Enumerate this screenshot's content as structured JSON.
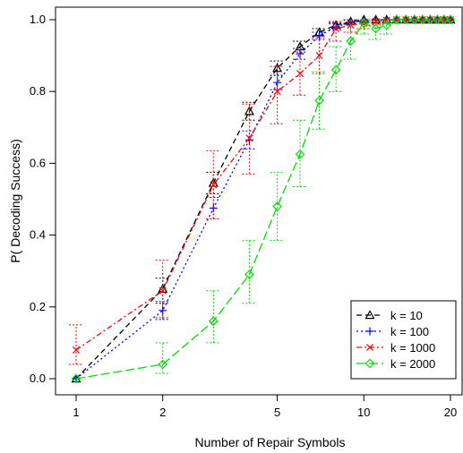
{
  "chart_data": {
    "type": "line",
    "xlabel": "Number of Repair Symbols",
    "ylabel": "P( Decoding Success)",
    "x_scale": "log",
    "xlim": [
      1,
      20
    ],
    "ylim": [
      0,
      1
    ],
    "x_ticks": [
      1,
      2,
      5,
      10,
      20
    ],
    "y_ticks": [
      0.0,
      0.2,
      0.4,
      0.6,
      0.8,
      1.0
    ],
    "x_tick_labels": [
      "1",
      "2",
      "5",
      "10",
      "20"
    ],
    "y_tick_labels": [
      "0.0",
      "0.2",
      "0.4",
      "0.6",
      "0.8",
      "1.0"
    ],
    "grid": false,
    "legend_position": "bottom-right",
    "series": [
      {
        "name": "k = 10",
        "color": "#000000",
        "marker": "triangle",
        "dash": "6,4",
        "points": [
          {
            "x": 1,
            "y": 0.0,
            "lo": 0.0,
            "hi": 0.0
          },
          {
            "x": 2,
            "y": 0.25,
            "lo": 0.21,
            "hi": 0.28
          },
          {
            "x": 3,
            "y": 0.545,
            "lo": 0.515,
            "hi": 0.575
          },
          {
            "x": 4,
            "y": 0.745,
            "lo": 0.72,
            "hi": 0.77
          },
          {
            "x": 5,
            "y": 0.865,
            "lo": 0.845,
            "hi": 0.885
          },
          {
            "x": 6,
            "y": 0.925,
            "lo": 0.91,
            "hi": 0.94
          },
          {
            "x": 7,
            "y": 0.965,
            "lo": 0.955,
            "hi": 0.975
          },
          {
            "x": 8,
            "y": 0.985,
            "lo": 0.978,
            "hi": 0.992
          },
          {
            "x": 9,
            "y": 0.995,
            "lo": 0.99,
            "hi": 1.0
          },
          {
            "x": 10,
            "y": 1.0,
            "lo": 1.0,
            "hi": 1.0
          },
          {
            "x": 11,
            "y": 1.0,
            "lo": 1.0,
            "hi": 1.0
          },
          {
            "x": 12,
            "y": 1.0,
            "lo": 1.0,
            "hi": 1.0
          },
          {
            "x": 13,
            "y": 1.0,
            "lo": 1.0,
            "hi": 1.0
          },
          {
            "x": 14,
            "y": 1.0,
            "lo": 1.0,
            "hi": 1.0
          },
          {
            "x": 15,
            "y": 1.0,
            "lo": 1.0,
            "hi": 1.0
          },
          {
            "x": 16,
            "y": 1.0,
            "lo": 1.0,
            "hi": 1.0
          },
          {
            "x": 17,
            "y": 1.0,
            "lo": 1.0,
            "hi": 1.0
          },
          {
            "x": 18,
            "y": 1.0,
            "lo": 1.0,
            "hi": 1.0
          },
          {
            "x": 19,
            "y": 1.0,
            "lo": 1.0,
            "hi": 1.0
          },
          {
            "x": 20,
            "y": 1.0,
            "lo": 1.0,
            "hi": 1.0
          }
        ]
      },
      {
        "name": "k = 100",
        "color": "#0000ff",
        "marker": "plus",
        "dash": "2,3",
        "points": [
          {
            "x": 1,
            "y": 0.0,
            "lo": 0.0,
            "hi": 0.0
          },
          {
            "x": 2,
            "y": 0.19,
            "lo": 0.165,
            "hi": 0.215
          },
          {
            "x": 3,
            "y": 0.475,
            "lo": 0.445,
            "hi": 0.505
          },
          {
            "x": 4,
            "y": 0.665,
            "lo": 0.64,
            "hi": 0.69
          },
          {
            "x": 5,
            "y": 0.825,
            "lo": 0.805,
            "hi": 0.845
          },
          {
            "x": 6,
            "y": 0.905,
            "lo": 0.89,
            "hi": 0.92
          },
          {
            "x": 7,
            "y": 0.955,
            "lo": 0.945,
            "hi": 0.965
          },
          {
            "x": 8,
            "y": 0.98,
            "lo": 0.972,
            "hi": 0.988
          },
          {
            "x": 9,
            "y": 0.993,
            "lo": 0.988,
            "hi": 0.998
          },
          {
            "x": 10,
            "y": 0.997,
            "lo": 0.994,
            "hi": 1.0
          },
          {
            "x": 11,
            "y": 1.0,
            "lo": 1.0,
            "hi": 1.0
          },
          {
            "x": 12,
            "y": 1.0,
            "lo": 1.0,
            "hi": 1.0
          },
          {
            "x": 13,
            "y": 1.0,
            "lo": 1.0,
            "hi": 1.0
          },
          {
            "x": 14,
            "y": 1.0,
            "lo": 1.0,
            "hi": 1.0
          },
          {
            "x": 15,
            "y": 1.0,
            "lo": 1.0,
            "hi": 1.0
          },
          {
            "x": 16,
            "y": 1.0,
            "lo": 1.0,
            "hi": 1.0
          },
          {
            "x": 17,
            "y": 1.0,
            "lo": 1.0,
            "hi": 1.0
          },
          {
            "x": 18,
            "y": 1.0,
            "lo": 1.0,
            "hi": 1.0
          },
          {
            "x": 19,
            "y": 1.0,
            "lo": 1.0,
            "hi": 1.0
          },
          {
            "x": 20,
            "y": 1.0,
            "lo": 1.0,
            "hi": 1.0
          }
        ]
      },
      {
        "name": "k = 1000",
        "color": "#ff0000",
        "marker": "cross",
        "dash": "6,3,2,3",
        "points": [
          {
            "x": 1,
            "y": 0.08,
            "lo": 0.04,
            "hi": 0.15
          },
          {
            "x": 2,
            "y": 0.245,
            "lo": 0.17,
            "hi": 0.33
          },
          {
            "x": 3,
            "y": 0.54,
            "lo": 0.445,
            "hi": 0.635
          },
          {
            "x": 4,
            "y": 0.67,
            "lo": 0.57,
            "hi": 0.765
          },
          {
            "x": 5,
            "y": 0.8,
            "lo": 0.71,
            "hi": 0.87
          },
          {
            "x": 6,
            "y": 0.85,
            "lo": 0.79,
            "hi": 0.91
          },
          {
            "x": 7,
            "y": 0.9,
            "lo": 0.85,
            "hi": 0.95
          },
          {
            "x": 8,
            "y": 0.975,
            "lo": 0.94,
            "hi": 0.995
          },
          {
            "x": 9,
            "y": 0.985,
            "lo": 0.965,
            "hi": 1.0
          },
          {
            "x": 10,
            "y": 0.99,
            "lo": 0.975,
            "hi": 1.0
          },
          {
            "x": 11,
            "y": 0.995,
            "lo": 0.985,
            "hi": 1.0
          },
          {
            "x": 12,
            "y": 0.998,
            "lo": 0.99,
            "hi": 1.0
          },
          {
            "x": 13,
            "y": 1.0,
            "lo": 1.0,
            "hi": 1.0
          },
          {
            "x": 14,
            "y": 1.0,
            "lo": 1.0,
            "hi": 1.0
          },
          {
            "x": 15,
            "y": 1.0,
            "lo": 1.0,
            "hi": 1.0
          },
          {
            "x": 16,
            "y": 1.0,
            "lo": 1.0,
            "hi": 1.0
          },
          {
            "x": 17,
            "y": 1.0,
            "lo": 1.0,
            "hi": 1.0
          },
          {
            "x": 18,
            "y": 1.0,
            "lo": 1.0,
            "hi": 1.0
          },
          {
            "x": 19,
            "y": 1.0,
            "lo": 1.0,
            "hi": 1.0
          },
          {
            "x": 20,
            "y": 1.0,
            "lo": 1.0,
            "hi": 1.0
          }
        ]
      },
      {
        "name": "k = 2000",
        "color": "#00dd00",
        "marker": "diamond",
        "dash": "10,4",
        "points": [
          {
            "x": 1,
            "y": 0.0,
            "lo": 0.0,
            "hi": 0.0
          },
          {
            "x": 2,
            "y": 0.04,
            "lo": 0.015,
            "hi": 0.1
          },
          {
            "x": 3,
            "y": 0.16,
            "lo": 0.1,
            "hi": 0.245
          },
          {
            "x": 4,
            "y": 0.29,
            "lo": 0.21,
            "hi": 0.385
          },
          {
            "x": 5,
            "y": 0.48,
            "lo": 0.385,
            "hi": 0.575
          },
          {
            "x": 6,
            "y": 0.625,
            "lo": 0.535,
            "hi": 0.72
          },
          {
            "x": 7,
            "y": 0.775,
            "lo": 0.695,
            "hi": 0.855
          },
          {
            "x": 8,
            "y": 0.86,
            "lo": 0.8,
            "hi": 0.925
          },
          {
            "x": 9,
            "y": 0.94,
            "lo": 0.89,
            "hi": 0.985
          },
          {
            "x": 10,
            "y": 0.99,
            "lo": 0.96,
            "hi": 1.0
          },
          {
            "x": 11,
            "y": 0.975,
            "lo": 0.945,
            "hi": 0.995
          },
          {
            "x": 12,
            "y": 0.985,
            "lo": 0.96,
            "hi": 1.0
          },
          {
            "x": 13,
            "y": 1.0,
            "lo": 0.99,
            "hi": 1.0
          },
          {
            "x": 14,
            "y": 1.0,
            "lo": 1.0,
            "hi": 1.0
          },
          {
            "x": 15,
            "y": 1.0,
            "lo": 1.0,
            "hi": 1.0
          },
          {
            "x": 16,
            "y": 1.0,
            "lo": 1.0,
            "hi": 1.0
          },
          {
            "x": 17,
            "y": 1.0,
            "lo": 1.0,
            "hi": 1.0
          },
          {
            "x": 18,
            "y": 1.0,
            "lo": 1.0,
            "hi": 1.0
          },
          {
            "x": 19,
            "y": 1.0,
            "lo": 1.0,
            "hi": 1.0
          },
          {
            "x": 20,
            "y": 1.0,
            "lo": 1.0,
            "hi": 1.0
          }
        ]
      }
    ]
  }
}
